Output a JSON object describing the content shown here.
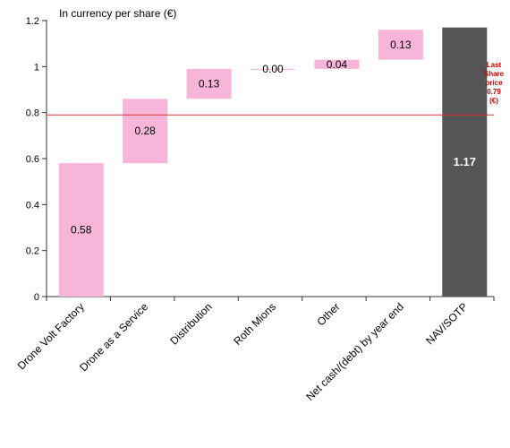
{
  "chart_data": {
    "type": "bar",
    "subtype": "waterfall",
    "title": "In currency per share (€)",
    "xlabel": "",
    "ylabel": "",
    "ylim": [
      0,
      1.2
    ],
    "yticks": [
      "0",
      "0.2",
      "0.4",
      "0.6",
      "0.8",
      "1",
      "1.2"
    ],
    "grid": false,
    "categories": [
      "Drone Volt Factory",
      "Drone as a Service",
      "Distribution",
      "Roth Mions",
      "Other",
      "Net cash/(debt) by year end",
      "NAV/SOTP"
    ],
    "values": [
      0.58,
      0.28,
      0.13,
      0.0,
      0.04,
      0.13,
      1.17
    ],
    "value_labels": [
      "0.58",
      "0.28",
      "0.13",
      "0.00",
      "0.04",
      "0.13",
      "1.17"
    ],
    "is_total": [
      false,
      false,
      false,
      false,
      false,
      false,
      true
    ],
    "colors": {
      "increment": "#f7b6d9",
      "total": "#555555",
      "reference": "#e03030",
      "reference_text": "#cc0000"
    },
    "reference_line": {
      "value": 0.79,
      "label_lines": [
        "Last",
        "Share",
        "price",
        "0.79",
        "(€)"
      ]
    }
  }
}
